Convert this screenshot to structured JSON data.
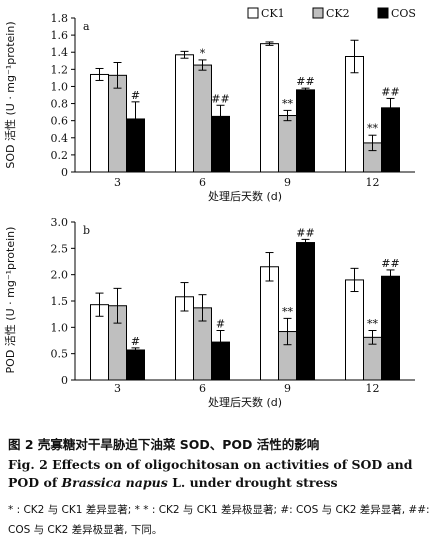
{
  "legend": [
    {
      "label": "CK1",
      "color": "#ffffff"
    },
    {
      "label": "CK2",
      "color": "#bfbfbf"
    },
    {
      "label": "COS",
      "color": "#000000"
    }
  ],
  "chart_data": [
    {
      "type": "bar",
      "panel_label": "a",
      "categories": [
        "3",
        "6",
        "9",
        "12"
      ],
      "series": [
        {
          "name": "CK1",
          "values": [
            1.14,
            1.37,
            1.5,
            1.35
          ],
          "errors": [
            0.07,
            0.04,
            0.02,
            0.19
          ]
        },
        {
          "name": "CK2",
          "values": [
            1.13,
            1.25,
            0.66,
            0.34
          ],
          "errors": [
            0.15,
            0.06,
            0.06,
            0.09
          ]
        },
        {
          "name": "COS",
          "values": [
            0.62,
            0.65,
            0.96,
            0.75
          ],
          "errors": [
            0.2,
            0.13,
            0.02,
            0.11
          ]
        }
      ],
      "annotations": [
        [
          "",
          "",
          "#"
        ],
        [
          "",
          "*",
          "##"
        ],
        [
          "",
          "**",
          "##"
        ],
        [
          "",
          "**",
          "##"
        ]
      ],
      "ylabel": "SOD 活性 (U · mg⁻¹protein)",
      "xlabel": "处理后天数 (d)",
      "ylim": [
        0,
        1.8
      ],
      "yticks": [
        "0",
        "0.2",
        "0.4",
        "0.6",
        "0.8",
        "1.0",
        "1.2",
        "1.4",
        "1.6",
        "1.8"
      ],
      "grid": false,
      "legend_position": "top-right"
    },
    {
      "type": "bar",
      "panel_label": "b",
      "categories": [
        "3",
        "6",
        "9",
        "12"
      ],
      "series": [
        {
          "name": "CK1",
          "values": [
            1.43,
            1.58,
            2.15,
            1.9
          ],
          "errors": [
            0.22,
            0.27,
            0.27,
            0.22
          ]
        },
        {
          "name": "CK2",
          "values": [
            1.41,
            1.37,
            0.92,
            0.81
          ],
          "errors": [
            0.33,
            0.25,
            0.25,
            0.13
          ]
        },
        {
          "name": "COS",
          "values": [
            0.57,
            0.72,
            2.61,
            1.97
          ],
          "errors": [
            0.04,
            0.22,
            0.06,
            0.12
          ]
        }
      ],
      "annotations": [
        [
          "",
          "",
          "#"
        ],
        [
          "",
          "",
          "#"
        ],
        [
          "",
          "**",
          "##"
        ],
        [
          "",
          "**",
          "##"
        ]
      ],
      "ylabel": "POD 活性 (U · mg⁻¹protein)",
      "xlabel": "处理后天数 (d)",
      "ylim": [
        0,
        3.0
      ],
      "yticks": [
        "0",
        "0.5",
        "1.0",
        "1.5",
        "2.0",
        "2.5",
        "3.0"
      ],
      "grid": false
    }
  ],
  "caption": {
    "cn": "图 2   壳寡糖对干旱胁迫下油菜 SOD、POD 活性的影响",
    "en_prefix": "Fig. 2   Effects on of oligochitosan on activities of SOD and POD of ",
    "en_italic": "Brassica napus",
    "en_suffix": " L.  under drought stress",
    "note": "* : CK2 与 CK1 差异显著;  * * : CK2 与 CK1 差异极显著;   #: COS 与 CK2 差异显著, ##: COS 与 CK2 差异极显著, 下同。"
  }
}
